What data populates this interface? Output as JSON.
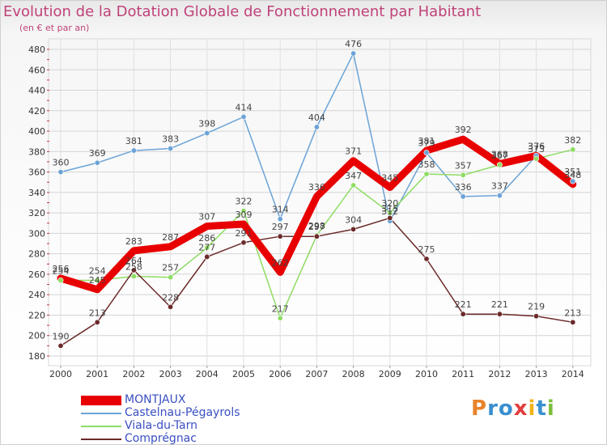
{
  "header": {
    "title": "Evolution de la Dotation Globale de Fonctionnement par Habitant",
    "subtitle": "(en € et par an)"
  },
  "logo": {
    "text": "Proxiti",
    "colors": [
      "#e8832a",
      "#3a8fd0",
      "#3a8fd0",
      "#e23c3c",
      "#f2b21b",
      "#3a8fd0",
      "#7cbf3c"
    ]
  },
  "chart_data": {
    "type": "line",
    "title": "Evolution de la Dotation Globale de Fonctionnement par Habitant",
    "subtitle": "(en € et par an)",
    "xlabel": "",
    "ylabel": "",
    "x": [
      "2000",
      "2001",
      "2002",
      "2003",
      "2004",
      "2005",
      "2006",
      "2007",
      "2008",
      "2009",
      "2010",
      "2011",
      "2012",
      "2013",
      "2014"
    ],
    "ylim": [
      180,
      480
    ],
    "yticks": [
      180,
      200,
      220,
      240,
      260,
      280,
      300,
      320,
      340,
      360,
      380,
      400,
      420,
      440,
      460,
      480
    ],
    "grid": true,
    "legend_position": "bottom-left",
    "series": [
      {
        "name": "MONTJAUX",
        "color": "#e80000",
        "values": [
          256,
          245,
          283,
          287,
          307,
          309,
          262,
          336,
          371,
          345,
          381,
          392,
          368,
          376,
          348
        ]
      },
      {
        "name": "Castelnau-Pégayrols",
        "color": "#6ba3d6",
        "values": [
          360,
          369,
          381,
          383,
          398,
          414,
          314,
          404,
          476,
          312,
          379,
          336,
          337,
          376,
          351
        ]
      },
      {
        "name": "Viala-du-Tarn",
        "color": "#8edc64",
        "values": [
          254,
          254,
          258,
          257,
          286,
          322,
          217,
          298,
          347,
          320,
          358,
          357,
          367,
          373,
          382
        ]
      },
      {
        "name": "Comprégnac",
        "color": "#6b2a2a",
        "values": [
          190,
          213,
          264,
          228,
          277,
          291,
          297,
          297,
          304,
          315,
          275,
          221,
          221,
          219,
          213
        ]
      }
    ],
    "data_labels": [
      [
        "256",
        "245",
        "283",
        "287",
        "307",
        "309",
        "262",
        "336",
        "371",
        "345",
        "381",
        "392",
        "368",
        "376",
        "348"
      ],
      [
        "360",
        "369",
        "381",
        "383",
        "398",
        "414",
        "314",
        "404",
        "476",
        "312",
        "379",
        "336",
        "337",
        "376",
        "351"
      ],
      [
        "254",
        "254",
        "258",
        "257",
        "286",
        "322",
        "217",
        "298",
        "347",
        "320",
        "358",
        "357",
        "367",
        "373",
        "382"
      ],
      [
        "190",
        "213",
        "264",
        "228",
        "277",
        "291",
        "297",
        "297",
        "304",
        "315",
        "275",
        "221",
        "221",
        "219",
        "213"
      ]
    ]
  }
}
